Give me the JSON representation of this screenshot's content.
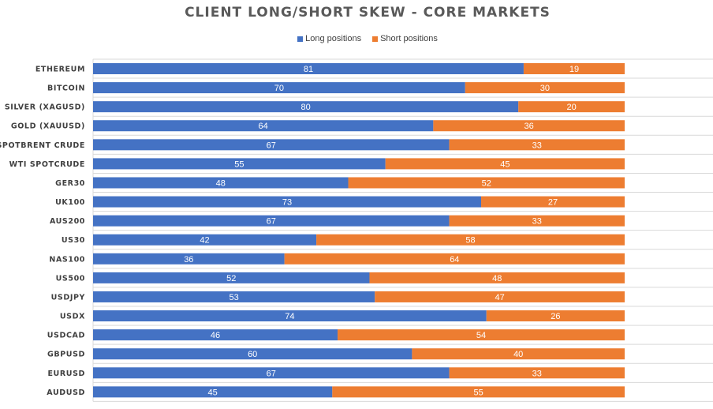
{
  "chart_data": {
    "type": "bar",
    "orientation": "horizontal",
    "stacked": true,
    "title": "CLIENT LONG/SHORT SKEW - CORE MARKETS",
    "legend_position": "top",
    "grid": true,
    "xlim": [
      0,
      100
    ],
    "categories": [
      "ETHEREUM",
      "BITCOIN",
      "SILVER (XAGUSD)",
      "GOLD (XAUUSD)",
      "SPOTBRENT CRUDE",
      "WTI SPOTCRUDE",
      "GER30",
      "UK100",
      "AUS200",
      "US30",
      "NAS100",
      "US500",
      "USDJPY",
      "USDX",
      "USDCAD",
      "GBPUSD",
      "EURUSD",
      "AUDUSD"
    ],
    "series": [
      {
        "name": "Long positions",
        "color": "#4472C4",
        "values": [
          81,
          70,
          80,
          64,
          67,
          55,
          48,
          73,
          67,
          42,
          36,
          52,
          53,
          74,
          46,
          60,
          67,
          45
        ]
      },
      {
        "name": "Short positions",
        "color": "#ED7D31",
        "values": [
          19,
          30,
          20,
          36,
          33,
          45,
          52,
          27,
          33,
          58,
          64,
          48,
          47,
          26,
          54,
          40,
          33,
          55
        ]
      }
    ]
  }
}
